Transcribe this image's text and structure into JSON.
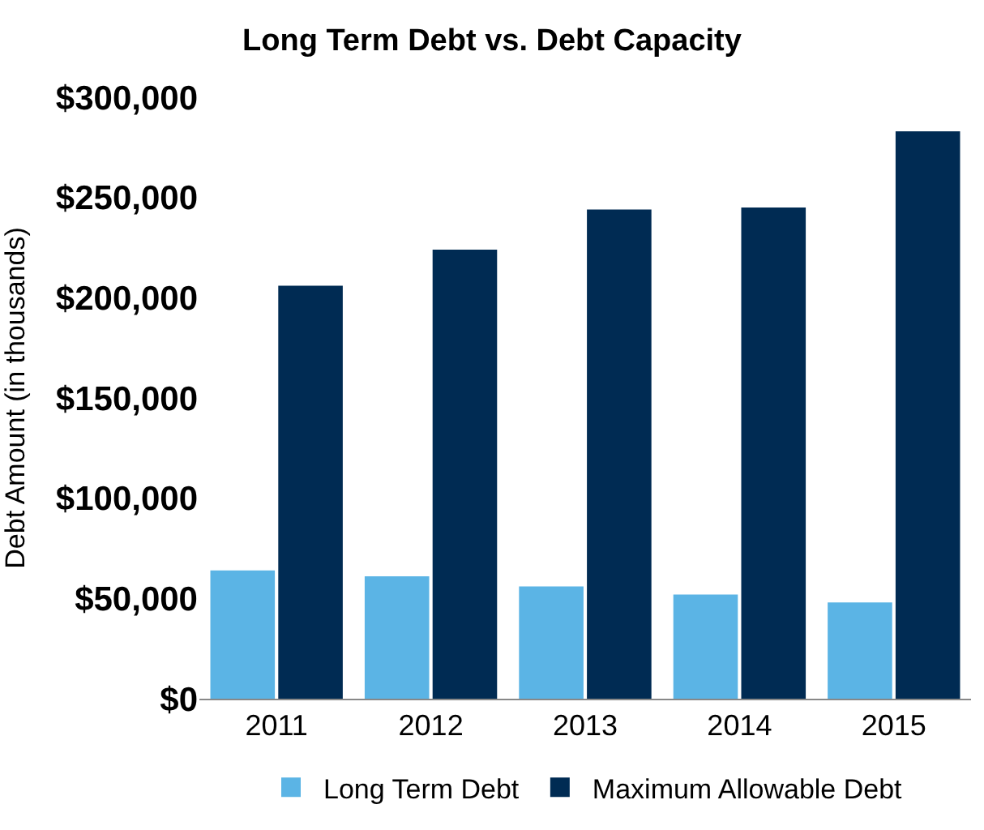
{
  "chart_data": {
    "type": "bar",
    "title": "Long Term Debt vs. Debt Capacity",
    "ylabel": "Debt Amount (in thousands)",
    "categories": [
      "2011",
      "2012",
      "2013",
      "2014",
      "2015"
    ],
    "series": [
      {
        "name": "Long Term Debt",
        "color": "#5bb4e5",
        "values": [
          64000,
          61000,
          56000,
          52000,
          48000
        ]
      },
      {
        "name": "Maximum Allowable Debt",
        "color": "#002b53",
        "values": [
          206000,
          224000,
          244000,
          245000,
          283000
        ]
      }
    ],
    "ylim": [
      0,
      300000
    ],
    "yticks": [
      {
        "value": 0,
        "label": "$0"
      },
      {
        "value": 50000,
        "label": "$50,000"
      },
      {
        "value": 100000,
        "label": "$100,000"
      },
      {
        "value": 150000,
        "label": "$150,000"
      },
      {
        "value": 200000,
        "label": "$200,000"
      },
      {
        "value": 250000,
        "label": "$250,000"
      },
      {
        "value": 300000,
        "label": "$300,000"
      }
    ],
    "legend": "bottom"
  }
}
